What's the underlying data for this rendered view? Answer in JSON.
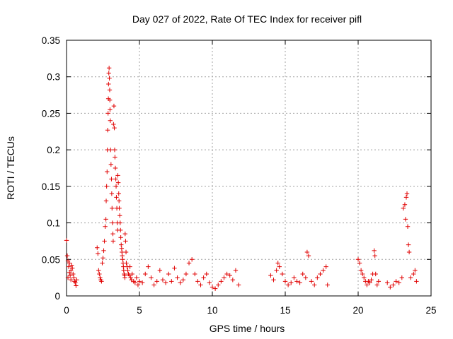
{
  "chart_data": {
    "type": "scatter",
    "title": "Day 027 of 2022, Rate Of TEC Index for receiver pifl",
    "xlabel": "GPS time / hours",
    "ylabel": "ROTI / TECUs",
    "xlim": [
      0,
      25
    ],
    "ylim": [
      0,
      0.35
    ],
    "xticks": [
      0,
      5,
      10,
      15,
      20,
      25
    ],
    "xtick_labels": [
      "0",
      "5",
      "10",
      "15",
      "20",
      "25"
    ],
    "yticks": [
      0,
      0.05,
      0.1,
      0.15,
      0.2,
      0.25,
      0.3,
      0.35
    ],
    "ytick_labels": [
      "0",
      "0.05",
      "0.1",
      "0.15",
      "0.2",
      "0.25",
      "0.3",
      "0.35"
    ],
    "grid": true,
    "marker": "+",
    "marker_color": "#e00000",
    "series": [
      {
        "name": "ROTI",
        "points": [
          [
            0.0,
            0.076
          ],
          [
            0.05,
            0.055
          ],
          [
            0.1,
            0.048
          ],
          [
            0.15,
            0.04
          ],
          [
            0.2,
            0.032
          ],
          [
            0.25,
            0.028
          ],
          [
            0.3,
            0.035
          ],
          [
            0.35,
            0.042
          ],
          [
            0.4,
            0.038
          ],
          [
            0.45,
            0.03
          ],
          [
            0.5,
            0.025
          ],
          [
            0.55,
            0.02
          ],
          [
            0.6,
            0.018
          ],
          [
            0.65,
            0.014
          ],
          [
            0.7,
            0.022
          ],
          [
            0.1,
            0.025
          ],
          [
            0.2,
            0.045
          ],
          [
            0.3,
            0.022
          ],
          [
            2.1,
            0.066
          ],
          [
            2.15,
            0.058
          ],
          [
            2.2,
            0.035
          ],
          [
            2.25,
            0.03
          ],
          [
            2.3,
            0.025
          ],
          [
            2.35,
            0.022
          ],
          [
            2.4,
            0.02
          ],
          [
            2.45,
            0.045
          ],
          [
            2.5,
            0.052
          ],
          [
            2.55,
            0.062
          ],
          [
            2.6,
            0.075
          ],
          [
            2.65,
            0.095
          ],
          [
            2.7,
            0.105
          ],
          [
            2.72,
            0.13
          ],
          [
            2.75,
            0.15
          ],
          [
            2.78,
            0.17
          ],
          [
            2.8,
            0.2
          ],
          [
            2.82,
            0.227
          ],
          [
            2.85,
            0.25
          ],
          [
            2.87,
            0.27
          ],
          [
            2.88,
            0.29
          ],
          [
            2.9,
            0.305
          ],
          [
            2.92,
            0.312
          ],
          [
            2.94,
            0.298
          ],
          [
            2.96,
            0.282
          ],
          [
            2.97,
            0.268
          ],
          [
            2.98,
            0.255
          ],
          [
            3.0,
            0.24
          ],
          [
            3.02,
            0.2
          ],
          [
            3.05,
            0.18
          ],
          [
            3.08,
            0.16
          ],
          [
            3.1,
            0.14
          ],
          [
            3.12,
            0.12
          ],
          [
            3.15,
            0.1
          ],
          [
            3.18,
            0.085
          ],
          [
            3.2,
            0.075
          ],
          [
            3.22,
            0.235
          ],
          [
            3.25,
            0.26
          ],
          [
            3.28,
            0.23
          ],
          [
            3.3,
            0.2
          ],
          [
            3.32,
            0.19
          ],
          [
            3.35,
            0.175
          ],
          [
            3.38,
            0.16
          ],
          [
            3.4,
            0.15
          ],
          [
            3.42,
            0.135
          ],
          [
            3.45,
            0.12
          ],
          [
            3.48,
            0.1
          ],
          [
            3.5,
            0.09
          ],
          [
            3.52,
            0.165
          ],
          [
            3.55,
            0.155
          ],
          [
            3.58,
            0.14
          ],
          [
            3.6,
            0.13
          ],
          [
            3.62,
            0.12
          ],
          [
            3.65,
            0.11
          ],
          [
            3.68,
            0.1
          ],
          [
            3.7,
            0.09
          ],
          [
            3.72,
            0.08
          ],
          [
            3.75,
            0.07
          ],
          [
            3.78,
            0.065
          ],
          [
            3.8,
            0.06
          ],
          [
            3.82,
            0.055
          ],
          [
            3.85,
            0.05
          ],
          [
            3.88,
            0.045
          ],
          [
            3.9,
            0.04
          ],
          [
            3.92,
            0.035
          ],
          [
            3.95,
            0.03
          ],
          [
            3.98,
            0.028
          ],
          [
            4.0,
            0.025
          ],
          [
            4.02,
            0.085
          ],
          [
            4.05,
            0.075
          ],
          [
            4.08,
            0.06
          ],
          [
            4.1,
            0.045
          ],
          [
            4.15,
            0.04
          ],
          [
            4.2,
            0.035
          ],
          [
            4.25,
            0.03
          ],
          [
            4.3,
            0.028
          ],
          [
            4.35,
            0.04
          ],
          [
            4.4,
            0.025
          ],
          [
            4.45,
            0.022
          ],
          [
            4.5,
            0.03
          ],
          [
            4.6,
            0.02
          ],
          [
            4.7,
            0.018
          ],
          [
            4.8,
            0.025
          ],
          [
            4.9,
            0.015
          ],
          [
            5.0,
            0.02
          ],
          [
            5.2,
            0.018
          ],
          [
            5.4,
            0.03
          ],
          [
            5.6,
            0.04
          ],
          [
            5.8,
            0.025
          ],
          [
            6.0,
            0.015
          ],
          [
            6.2,
            0.02
          ],
          [
            6.4,
            0.035
          ],
          [
            6.6,
            0.022
          ],
          [
            6.8,
            0.018
          ],
          [
            7.0,
            0.03
          ],
          [
            7.2,
            0.02
          ],
          [
            7.4,
            0.038
          ],
          [
            7.6,
            0.025
          ],
          [
            7.8,
            0.018
          ],
          [
            8.0,
            0.022
          ],
          [
            8.2,
            0.03
          ],
          [
            8.4,
            0.045
          ],
          [
            8.6,
            0.05
          ],
          [
            8.8,
            0.03
          ],
          [
            9.0,
            0.02
          ],
          [
            9.2,
            0.015
          ],
          [
            9.4,
            0.025
          ],
          [
            9.6,
            0.03
          ],
          [
            9.8,
            0.018
          ],
          [
            10.0,
            0.012
          ],
          [
            10.2,
            0.01
          ],
          [
            10.4,
            0.015
          ],
          [
            10.6,
            0.02
          ],
          [
            10.8,
            0.025
          ],
          [
            11.0,
            0.03
          ],
          [
            11.2,
            0.028
          ],
          [
            11.4,
            0.022
          ],
          [
            11.6,
            0.035
          ],
          [
            11.8,
            0.015
          ],
          [
            14.0,
            0.028
          ],
          [
            14.2,
            0.022
          ],
          [
            14.4,
            0.035
          ],
          [
            14.5,
            0.045
          ],
          [
            14.6,
            0.04
          ],
          [
            14.8,
            0.03
          ],
          [
            15.0,
            0.02
          ],
          [
            15.2,
            0.015
          ],
          [
            15.4,
            0.018
          ],
          [
            15.6,
            0.025
          ],
          [
            15.8,
            0.02
          ],
          [
            16.0,
            0.018
          ],
          [
            16.2,
            0.03
          ],
          [
            16.4,
            0.025
          ],
          [
            16.5,
            0.06
          ],
          [
            16.6,
            0.055
          ],
          [
            16.8,
            0.02
          ],
          [
            17.0,
            0.015
          ],
          [
            17.2,
            0.025
          ],
          [
            17.4,
            0.03
          ],
          [
            17.6,
            0.035
          ],
          [
            17.8,
            0.04
          ],
          [
            17.9,
            0.015
          ],
          [
            20.0,
            0.05
          ],
          [
            20.1,
            0.045
          ],
          [
            20.2,
            0.035
          ],
          [
            20.3,
            0.03
          ],
          [
            20.4,
            0.025
          ],
          [
            20.5,
            0.02
          ],
          [
            20.6,
            0.015
          ],
          [
            20.7,
            0.02
          ],
          [
            20.8,
            0.018
          ],
          [
            20.9,
            0.022
          ],
          [
            21.0,
            0.03
          ],
          [
            21.1,
            0.062
          ],
          [
            21.15,
            0.055
          ],
          [
            21.2,
            0.03
          ],
          [
            21.3,
            0.015
          ],
          [
            21.4,
            0.02
          ],
          [
            22.0,
            0.018
          ],
          [
            22.2,
            0.012
          ],
          [
            22.4,
            0.015
          ],
          [
            22.6,
            0.02
          ],
          [
            22.8,
            0.018
          ],
          [
            23.0,
            0.025
          ],
          [
            23.1,
            0.12
          ],
          [
            23.2,
            0.125
          ],
          [
            23.25,
            0.105
          ],
          [
            23.3,
            0.135
          ],
          [
            23.35,
            0.14
          ],
          [
            23.4,
            0.095
          ],
          [
            23.45,
            0.07
          ],
          [
            23.5,
            0.06
          ],
          [
            23.6,
            0.025
          ],
          [
            23.8,
            0.03
          ],
          [
            23.9,
            0.035
          ],
          [
            24.0,
            0.02
          ]
        ]
      }
    ]
  }
}
